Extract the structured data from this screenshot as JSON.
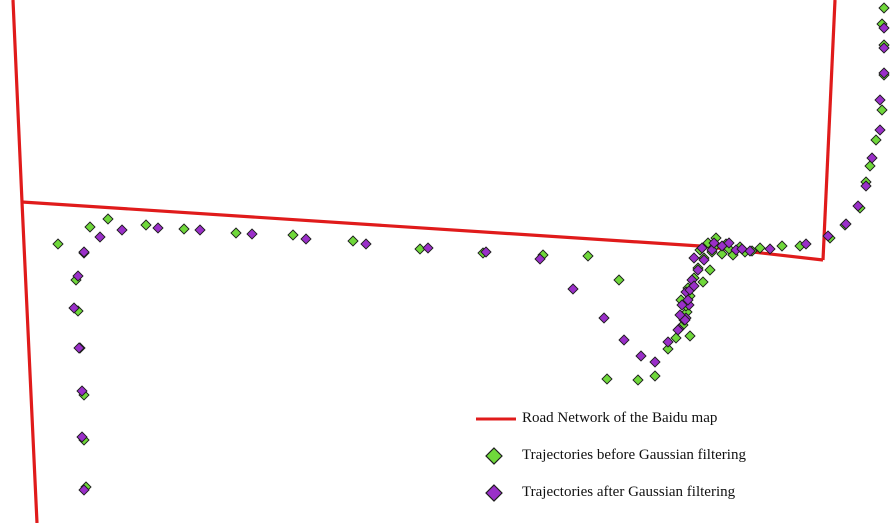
{
  "colors": {
    "road": "#e01b1b",
    "before_fill": "#6fd83a",
    "after_fill": "#9a2fc9",
    "marker_stroke": "#1d1d1d",
    "background": "#ffffff"
  },
  "legend": {
    "road_label": "Road Network of the Baidu map",
    "before_label": "Trajectories before Gaussian filtering",
    "after_label": "Trajectories after Gaussian filtering"
  },
  "map": {
    "road_network": "red polylines",
    "trajectory_markers": "diamond points"
  }
}
